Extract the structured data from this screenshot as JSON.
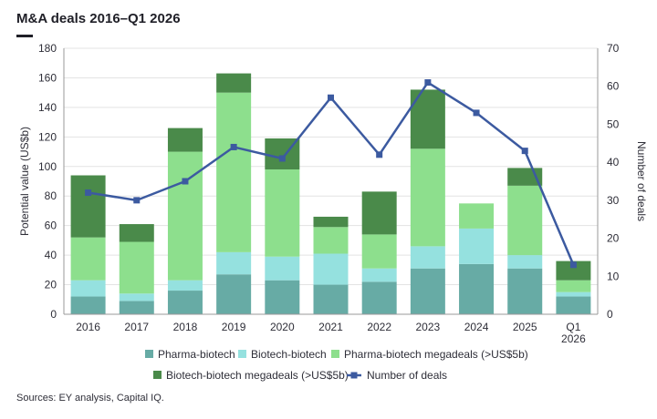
{
  "title": "M&A deals 2016–Q1 2026",
  "source": "Sources: EY analysis, Capital IQ.",
  "chart_data": {
    "type": "bar",
    "stacked": true,
    "categories": [
      "2016",
      "2017",
      "2018",
      "2019",
      "2020",
      "2021",
      "2022",
      "2023",
      "2024",
      "2025",
      [
        "Q1",
        "2026"
      ]
    ],
    "ylabel": "Potential value (US$b)",
    "ylim": [
      0,
      180
    ],
    "yticks": [
      0,
      20,
      40,
      60,
      80,
      100,
      120,
      140,
      160,
      180
    ],
    "y2label": "Number of deals",
    "y2lim": [
      0,
      70
    ],
    "y2ticks": [
      0,
      10,
      20,
      30,
      40,
      50,
      60,
      70
    ],
    "legend_position": "bottom",
    "series": [
      {
        "name": "Pharma-biotech",
        "color": "#67aba5",
        "values": [
          12,
          9,
          16,
          27,
          23,
          20,
          22,
          31,
          34,
          31,
          12
        ]
      },
      {
        "name": "Biotech-biotech",
        "color": "#95e1df",
        "values": [
          11,
          5,
          7,
          15,
          16,
          21,
          9,
          15,
          24,
          9,
          3
        ]
      },
      {
        "name": "Pharma-biotech megadeals (>US$5b)",
        "color": "#8ddf8d",
        "values": [
          29,
          35,
          87,
          108,
          59,
          18,
          23,
          66,
          17,
          47,
          8
        ]
      },
      {
        "name": "Biotech-biotech megadeals (>US$5b)",
        "color": "#4a8a4a",
        "values": [
          42,
          12,
          16,
          13,
          21,
          7,
          29,
          40,
          0,
          12,
          13
        ]
      }
    ],
    "line_series": {
      "name": "Number of deals",
      "color": "#3c5aa0",
      "axis": "right",
      "values": [
        32,
        30,
        35,
        44,
        41,
        57,
        42,
        61,
        53,
        43,
        13
      ]
    }
  }
}
